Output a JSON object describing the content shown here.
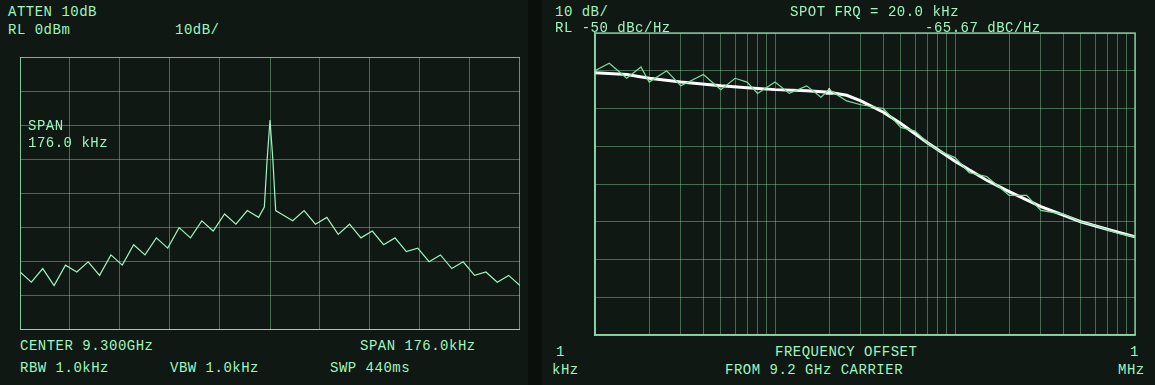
{
  "chart_data": [
    {
      "type": "line",
      "annotations": [
        "ATTEN 10dB",
        "RL 0dBm",
        "10dB/",
        "SPAN",
        "176.0 kHz",
        "CENTER 9.300GHz",
        "SPAN 176.0kHz",
        "RBW 1.0kHz",
        "VBW 1.0kHz",
        "SWP 440ms"
      ],
      "x": [
        9.299912,
        9.299916,
        9.29992,
        9.299924,
        9.299928,
        9.299932,
        9.299936,
        9.29994,
        9.299944,
        9.299948,
        9.299952,
        9.299956,
        9.29996,
        9.299964,
        9.299968,
        9.299972,
        9.299976,
        9.29998,
        9.299984,
        9.299988,
        9.299992,
        9.299996,
        9.299998,
        9.299999,
        9.3,
        9.300001,
        9.300002,
        9.300004,
        9.300008,
        9.300012,
        9.300016,
        9.30002,
        9.300024,
        9.300028,
        9.300032,
        9.300036,
        9.30004,
        9.300044,
        9.300048,
        9.300052,
        9.300056,
        9.30006,
        9.300064,
        9.300068,
        9.300072,
        9.300076,
        9.30008,
        9.300084,
        9.300088
      ],
      "values": [
        -63,
        -66,
        -62,
        -67,
        -61,
        -63,
        -60,
        -64,
        -58,
        -61,
        -55,
        -58,
        -53,
        -56,
        -50,
        -53,
        -48,
        -51,
        -46,
        -49,
        -45,
        -47,
        -44,
        -30,
        -18.5,
        -30,
        -45,
        -46,
        -48,
        -45,
        -49,
        -47,
        -52,
        -49,
        -53,
        -51,
        -55,
        -53,
        -57,
        -56,
        -60,
        -58,
        -62,
        -60,
        -64,
        -63,
        -66,
        -64,
        -67
      ],
      "color": "#9ff5c0",
      "xlim": [
        9.299912,
        9.300088
      ],
      "xticks": [
        9.299912,
        9.2999296,
        9.2999472,
        9.2999648,
        9.2999824,
        9.3,
        9.3000176,
        9.3000352,
        9.3000528,
        9.3000704,
        9.300088
      ],
      "ylim": [
        -80,
        0
      ],
      "yticks": [
        -80,
        -70,
        -60,
        -50,
        -40,
        -30,
        -20,
        -10,
        0
      ],
      "grid": true,
      "tick_labels": false
    },
    {
      "type": "line",
      "annotations": [
        "10 dB/",
        "RL -50 dBc/Hz",
        "SPOT FRQ =  20.0 kHz",
        "-65.67 dBC/Hz",
        "1",
        "kHz",
        "FREQUENCY OFFSET",
        "FROM 9.2 GHz CARRIER",
        "1",
        "MHz"
      ],
      "series": [
        {
          "color": "#7fdca0",
          "x": [
            1,
            1.2,
            1.5,
            1.8,
            2,
            2.5,
            3,
            4,
            5,
            6,
            7,
            8,
            10,
            12,
            15,
            18,
            20,
            25,
            30,
            40,
            50,
            60,
            70,
            80,
            100,
            120,
            150,
            200,
            250,
            300,
            400,
            500,
            600,
            800,
            1000
          ],
          "values": [
            -60,
            -58,
            -62,
            -59,
            -63,
            -60,
            -64,
            -61,
            -65,
            -62,
            -63,
            -66,
            -63,
            -66,
            -64,
            -67,
            -65,
            -68,
            -69,
            -70,
            -75,
            -76,
            -79,
            -81,
            -83,
            -87,
            -88,
            -93,
            -93,
            -97,
            -98,
            -100,
            -101,
            -103,
            -104
          ]
        },
        {
          "color": "#ffffff",
          "x": [
            1,
            1.5,
            2,
            3,
            5,
            7,
            10,
            15,
            20,
            25,
            30,
            40,
            50,
            70,
            100,
            150,
            200,
            300,
            500,
            700,
            1000
          ],
          "values": [
            -60.5,
            -61,
            -62,
            -63,
            -64,
            -64.5,
            -65,
            -65.3,
            -65.67,
            -66.5,
            -68,
            -71,
            -74,
            -79,
            -84,
            -89,
            -92,
            -96,
            -100,
            -102,
            -104
          ]
        }
      ],
      "spot": {
        "x": 20,
        "y": -65.67
      },
      "log": "x",
      "xlim": [
        1,
        1000
      ],
      "xticks": [
        1,
        2,
        3,
        4,
        5,
        6,
        7,
        8,
        9,
        10,
        20,
        30,
        40,
        50,
        60,
        70,
        80,
        90,
        100,
        200,
        300,
        400,
        500,
        600,
        700,
        800,
        900,
        1000
      ],
      "ylim": [
        -130,
        -50
      ],
      "yticks": [
        -130,
        -120,
        -110,
        -100,
        -90,
        -80,
        -70,
        -60,
        -50
      ],
      "grid": true,
      "tick_labels": false
    }
  ]
}
